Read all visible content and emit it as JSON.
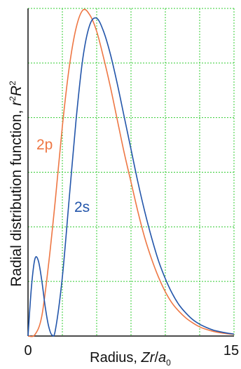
{
  "chart_data": {
    "type": "line",
    "xlabel_prefix": "Radius, ",
    "xlabel_var": "Zr",
    "xlabel_slash": "/",
    "xlabel_a": "a",
    "xlabel_sub": "0",
    "ylabel_text": "Radial distribution function, ",
    "ylabel_r": "r",
    "ylabel_r_sup": "2",
    "ylabel_R": "R",
    "ylabel_R_sup": "2",
    "x_tick_labels": [
      "0",
      "15"
    ],
    "xlim": [
      0,
      15
    ],
    "ylim": [
      0,
      1
    ],
    "grid": true,
    "grid_color": "#33cc33",
    "series": [
      {
        "name": "2p",
        "color": "#ee7744",
        "x": [
          0,
          0.5,
          1,
          1.5,
          2,
          2.5,
          3,
          3.5,
          4,
          4.5,
          5,
          5.5,
          6,
          6.5,
          7,
          7.5,
          8,
          8.5,
          9,
          9.5,
          10,
          10.5,
          11,
          11.5,
          12,
          12.5,
          13,
          13.5,
          14,
          14.5,
          15
        ],
        "y": [
          0,
          0.004,
          0.06,
          0.22,
          0.42,
          0.64,
          0.82,
          0.94,
          0.995,
          0.98,
          0.93,
          0.85,
          0.76,
          0.66,
          0.56,
          0.47,
          0.38,
          0.3,
          0.235,
          0.18,
          0.135,
          0.1,
          0.075,
          0.055,
          0.04,
          0.028,
          0.02,
          0.014,
          0.01,
          0.007,
          0.005
        ]
      },
      {
        "name": "2s",
        "color": "#2255aa",
        "x": [
          0,
          0.25,
          0.5,
          0.75,
          1,
          1.25,
          1.5,
          1.75,
          2,
          2.5,
          3,
          3.5,
          4,
          4.5,
          5,
          5.5,
          6,
          6.5,
          7,
          7.5,
          8,
          8.5,
          9,
          9.5,
          10,
          10.5,
          11,
          11.5,
          12,
          12.5,
          13,
          13.5,
          14,
          14.5,
          15
        ],
        "y": [
          0,
          0.15,
          0.235,
          0.23,
          0.17,
          0.09,
          0.03,
          0.003,
          0.02,
          0.18,
          0.42,
          0.66,
          0.85,
          0.95,
          0.97,
          0.93,
          0.86,
          0.77,
          0.67,
          0.57,
          0.47,
          0.38,
          0.3,
          0.23,
          0.175,
          0.13,
          0.095,
          0.07,
          0.05,
          0.036,
          0.026,
          0.018,
          0.013,
          0.009,
          0.006
        ]
      }
    ]
  }
}
